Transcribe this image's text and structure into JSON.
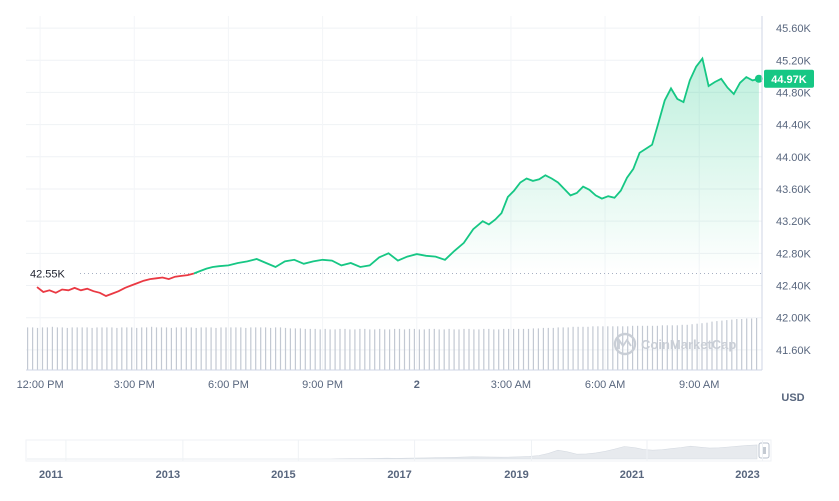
{
  "chart_data": {
    "type": "line",
    "currency": "USD",
    "y_ticks": [
      "45.60K",
      "45.20K",
      "44.80K",
      "44.40K",
      "44.00K",
      "43.60K",
      "43.20K",
      "42.80K",
      "42.40K",
      "42.00K",
      "41.60K"
    ],
    "ylim": [
      41.35,
      45.75
    ],
    "x_ticks": [
      "12:00 PM",
      "3:00 PM",
      "6:00 PM",
      "9:00 PM",
      "2",
      "3:00 AM",
      "6:00 AM",
      "9:00 AM"
    ],
    "x_tick_hours": [
      1.0,
      4.0,
      7.0,
      10.0,
      13.0,
      16.0,
      19.0,
      22.0
    ],
    "x_range_hours": [
      0.55,
      24.0
    ],
    "reference": {
      "label": "42.55K",
      "value": 42.55
    },
    "current": {
      "label": "44.97K",
      "value": 44.97
    },
    "series": [
      {
        "x": [
          0.9,
          1.1,
          1.3,
          1.5,
          1.7,
          1.9,
          2.1,
          2.3,
          2.5,
          2.7,
          2.9,
          3.1,
          3.3,
          3.5,
          3.7,
          3.9,
          4.1,
          4.3,
          4.5,
          4.7,
          4.9,
          5.1,
          5.3,
          5.5,
          5.7,
          5.9,
          6.1,
          6.3,
          6.5,
          6.7,
          7.0,
          7.3,
          7.6,
          7.9,
          8.2,
          8.5,
          8.8,
          9.1,
          9.4,
          9.7,
          10.0,
          10.3,
          10.6,
          10.9,
          11.2,
          11.5,
          11.8,
          12.1,
          12.4,
          12.7,
          13.0,
          13.3,
          13.6,
          13.9,
          14.2,
          14.5,
          14.8,
          15.1,
          15.3,
          15.5,
          15.7,
          15.9,
          16.1,
          16.3,
          16.5,
          16.7,
          16.9,
          17.1,
          17.3,
          17.5,
          17.7,
          17.9,
          18.1,
          18.3,
          18.5,
          18.7,
          18.9,
          19.1,
          19.3,
          19.5,
          19.7,
          19.9,
          20.1,
          20.3,
          20.5,
          20.7,
          20.9,
          21.1,
          21.3,
          21.5,
          21.7,
          21.9,
          22.1,
          22.3,
          22.5,
          22.7,
          22.9,
          23.1,
          23.3,
          23.5,
          23.7,
          23.9
        ],
        "y": [
          42.38,
          42.32,
          42.34,
          42.31,
          42.35,
          42.34,
          42.37,
          42.34,
          42.36,
          42.33,
          42.31,
          42.27,
          42.3,
          42.33,
          42.37,
          42.4,
          42.43,
          42.46,
          42.48,
          42.49,
          42.5,
          42.48,
          42.51,
          42.52,
          42.53,
          42.55,
          42.58,
          42.61,
          42.63,
          42.64,
          42.65,
          42.68,
          42.7,
          42.73,
          42.68,
          42.63,
          42.7,
          42.72,
          42.67,
          42.7,
          42.72,
          42.71,
          42.65,
          42.68,
          42.63,
          42.65,
          42.75,
          42.8,
          42.71,
          42.76,
          42.79,
          42.77,
          42.76,
          42.72,
          42.83,
          42.93,
          43.1,
          43.2,
          43.16,
          43.22,
          43.3,
          43.5,
          43.58,
          43.68,
          43.73,
          43.7,
          43.72,
          43.77,
          43.73,
          43.68,
          43.6,
          43.52,
          43.55,
          43.63,
          43.59,
          43.52,
          43.48,
          43.51,
          43.49,
          43.58,
          43.74,
          43.85,
          44.05,
          44.1,
          44.15,
          44.42,
          44.7,
          44.85,
          44.72,
          44.68,
          44.95,
          45.12,
          45.22,
          44.88,
          44.93,
          44.97,
          44.86,
          44.78,
          44.92,
          44.99,
          44.95,
          44.97
        ]
      }
    ],
    "volume_bars": [
      0.82,
      0.82,
      0.81,
      0.82,
      0.82,
      0.83,
      0.82,
      0.82,
      0.81,
      0.82,
      0.82,
      0.82,
      0.82,
      0.81,
      0.82,
      0.82,
      0.82,
      0.82,
      0.81,
      0.82,
      0.82,
      0.82,
      0.81,
      0.82,
      0.82,
      0.83,
      0.82,
      0.82,
      0.82,
      0.81,
      0.82,
      0.82,
      0.82,
      0.82,
      0.81,
      0.82,
      0.82,
      0.82,
      0.81,
      0.82,
      0.82,
      0.82,
      0.82,
      0.82,
      0.81,
      0.82,
      0.82,
      0.82,
      0.82,
      0.81,
      0.82,
      0.82,
      0.81,
      0.8,
      0.8,
      0.8,
      0.79,
      0.79,
      0.79,
      0.78,
      0.79,
      0.78,
      0.78,
      0.79,
      0.79,
      0.78,
      0.78,
      0.79,
      0.79,
      0.78,
      0.78,
      0.79,
      0.78,
      0.78,
      0.79,
      0.79,
      0.78,
      0.79,
      0.79,
      0.78,
      0.78,
      0.79,
      0.79,
      0.78,
      0.78,
      0.79,
      0.78,
      0.78,
      0.79,
      0.79,
      0.78,
      0.78,
      0.79,
      0.79,
      0.78,
      0.78,
      0.79,
      0.79,
      0.79,
      0.79,
      0.79,
      0.79,
      0.8,
      0.8,
      0.81,
      0.81,
      0.81,
      0.82,
      0.82,
      0.82,
      0.83,
      0.83,
      0.83,
      0.83,
      0.84,
      0.84,
      0.84,
      0.84,
      0.84,
      0.84,
      0.84,
      0.84,
      0.85,
      0.85,
      0.85,
      0.85,
      0.85,
      0.85,
      0.86,
      0.86,
      0.86,
      0.86,
      0.87,
      0.87,
      0.88,
      0.89,
      0.9,
      0.91,
      0.93,
      0.94,
      0.95,
      0.96,
      0.97,
      0.98,
      0.98,
      0.99,
      0.99,
      1.0
    ],
    "watermark": "CoinMarketCap",
    "overview_years": [
      "2011",
      "2013",
      "2015",
      "2017",
      "2019",
      "2021",
      "2023"
    ],
    "overview_year_fraction": [
      0.02,
      0.177,
      0.332,
      0.488,
      0.645,
      0.8,
      0.955
    ],
    "overview_profile": [
      0,
      0,
      0,
      0,
      0,
      0,
      0,
      0,
      0,
      0,
      0,
      0,
      0,
      0,
      0,
      0,
      0,
      0,
      0,
      0,
      0,
      0,
      0,
      0,
      0,
      0,
      0,
      0,
      0,
      0,
      0,
      0,
      0,
      0.01,
      0.02,
      0.02,
      0.03,
      0.04,
      0.05,
      0.04,
      0.05,
      0.06,
      0.07,
      0.08,
      0.09,
      0.1,
      0.12,
      0.14,
      0.13,
      0.12,
      0.11,
      0.12,
      0.14,
      0.16,
      0.22,
      0.35,
      0.55,
      0.45,
      0.3,
      0.32,
      0.38,
      0.48,
      0.62,
      0.78,
      0.72,
      0.6,
      0.55,
      0.58,
      0.65,
      0.72,
      0.8,
      0.74,
      0.68,
      0.7,
      0.75,
      0.8,
      0.85,
      0.88
    ],
    "colors": {
      "up": "#16c784",
      "down": "#ea3943",
      "grid": "#eff2f5",
      "axis": "#cfd6e4",
      "volume": "#c3c9d3",
      "badge": "#16c784",
      "area_top": "#16c784"
    }
  }
}
